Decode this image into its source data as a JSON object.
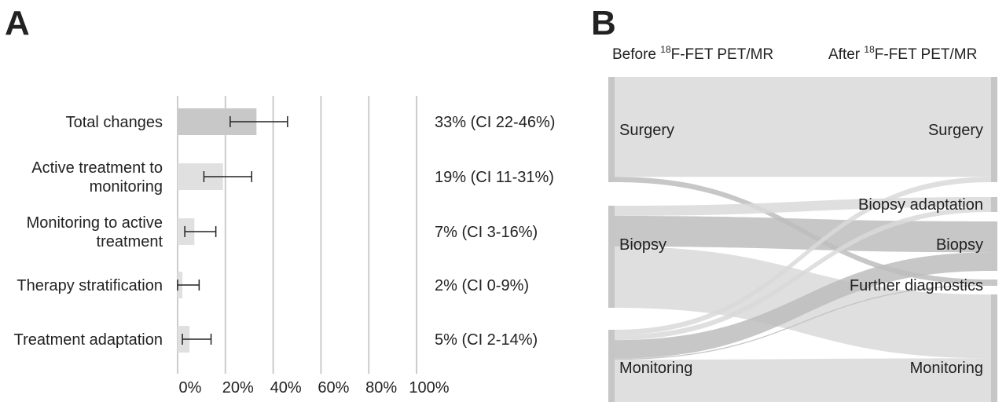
{
  "panels": {
    "a_letter": "A",
    "b_letter": "B"
  },
  "chart_data": [
    {
      "type": "bar",
      "orientation": "horizontal",
      "categories": [
        "Total changes",
        "Active treatment to monitoring",
        "Monitoring to active treatment",
        "Therapy stratification",
        "Treatment adaptation"
      ],
      "category_lines": [
        [
          "Total changes"
        ],
        [
          "Active treatment to",
          "monitoring"
        ],
        [
          "Monitoring to active",
          "treatment"
        ],
        [
          "Therapy stratification"
        ],
        [
          "Treatment adaptation"
        ]
      ],
      "values": [
        33,
        19,
        7,
        2,
        5
      ],
      "ci_low": [
        22,
        11,
        3,
        0,
        2
      ],
      "ci_high": [
        46,
        31,
        16,
        9,
        14
      ],
      "value_labels": [
        "33% (CI 22-46%)",
        "19% (CI 11-31%)",
        "7% (CI 3-16%)",
        "2% (CI 0-9%)",
        "5% (CI 2-14%)"
      ],
      "bar_colors": [
        "#c8c8c8",
        "#e0e0e0",
        "#e0e0e0",
        "#e0e0e0",
        "#e0e0e0"
      ],
      "xlim": [
        0,
        100
      ],
      "xticks": [
        0,
        20,
        40,
        60,
        80,
        100
      ],
      "xtick_labels": [
        "0%",
        "20%",
        "40%",
        "60%",
        "80%",
        "100%"
      ],
      "grid": "vertical",
      "grid_color": "#cccccc",
      "error_bar_color": "#222222"
    },
    {
      "type": "sankey",
      "column_headers": {
        "left": {
          "pre": "Before ",
          "sup": "18",
          "post": "F-FET PET/MR"
        },
        "right": {
          "pre": "After ",
          "sup": "18",
          "post": "F-FET PET/MR"
        }
      },
      "left_nodes": [
        {
          "id": "surgery_b",
          "label": "Surgery",
          "size": 10
        },
        {
          "id": "biopsy_b",
          "label": "Biopsy",
          "size": 10
        },
        {
          "id": "monitoring_b",
          "label": "Monitoring",
          "size": 7
        }
      ],
      "right_nodes": [
        {
          "id": "surgery_a",
          "label": "Surgery",
          "size": 10
        },
        {
          "id": "biopsy_adapt",
          "label": "Biopsy adaptation",
          "size": 1.5
        },
        {
          "id": "biopsy_a",
          "label": "Biopsy",
          "size": 4.8
        },
        {
          "id": "further_diag",
          "label": "Further diagnostics",
          "size": 0.6
        },
        {
          "id": "monitoring_a",
          "label": "Monitoring",
          "size": 10.1
        }
      ],
      "flows": [
        {
          "from": "surgery_b",
          "to": "surgery_a",
          "value": 9.5
        },
        {
          "from": "surgery_b",
          "to": "further_diag",
          "value": 0.5
        },
        {
          "from": "biopsy_b",
          "to": "biopsy_adapt",
          "value": 1.0
        },
        {
          "from": "biopsy_b",
          "to": "biopsy_a",
          "value": 3.0
        },
        {
          "from": "biopsy_b",
          "to": "monitoring_a",
          "value": 6.0
        },
        {
          "from": "monitoring_b",
          "to": "surgery_a",
          "value": 0.5
        },
        {
          "from": "monitoring_b",
          "to": "biopsy_adapt",
          "value": 0.5
        },
        {
          "from": "monitoring_b",
          "to": "biopsy_a",
          "value": 1.8
        },
        {
          "from": "monitoring_b",
          "to": "further_diag",
          "value": 0.1
        },
        {
          "from": "monitoring_b",
          "to": "monitoring_a",
          "value": 4.1
        }
      ],
      "node_color": "#c6c6c6",
      "flow_color": "#d9d9d9",
      "highlight_flow_color": "#bdbdbd"
    }
  ]
}
